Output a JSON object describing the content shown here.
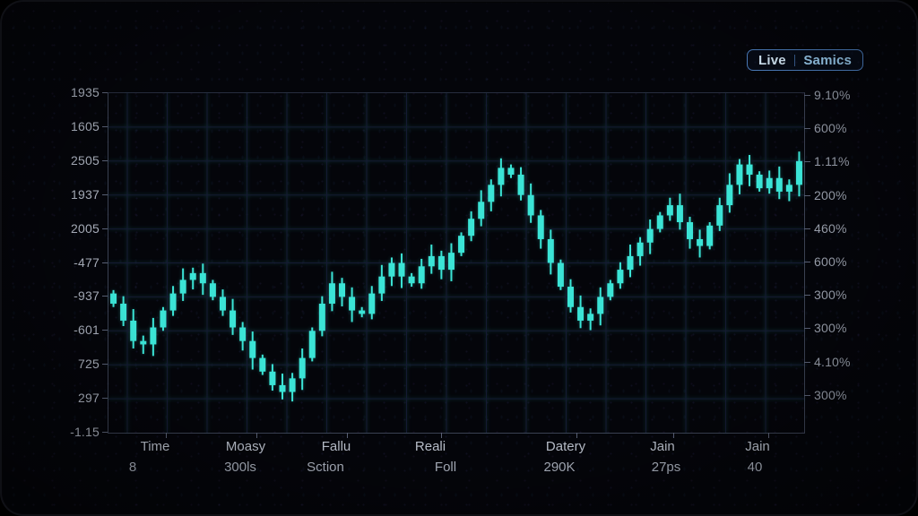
{
  "badge": {
    "live": "Live",
    "name": "Samics"
  },
  "chart_data": {
    "type": "candlestick",
    "title": "",
    "color": "#3be4d6",
    "grid": true,
    "legend_position": "top-right",
    "y_axis_left_labels": [
      "1935",
      "1605",
      "2505",
      "1937",
      "2005",
      "-477",
      "-937",
      "-601",
      "725",
      "297",
      "-1.15"
    ],
    "y_axis_right_labels": [
      "9.10%",
      "600%",
      "1.11%",
      "200%",
      "460%",
      "600%",
      "300%",
      "300%",
      "4.10%",
      "300%"
    ],
    "x_groups": [
      {
        "label": "Time",
        "value": "8"
      },
      {
        "label": "Moasy",
        "value": "300ls"
      },
      {
        "label": "Fallu",
        "value": "Sction"
      },
      {
        "label": "Reali",
        "value": "Foll"
      },
      {
        "label": "Datery",
        "value": "290K"
      },
      {
        "label": "Jain",
        "value": "27ps"
      },
      {
        "label": "Jain",
        "value": "40"
      }
    ],
    "value_range": [
      0,
      100
    ],
    "first_open": 41,
    "closes": [
      38,
      33,
      27,
      26,
      31,
      36,
      41,
      45,
      47,
      44,
      40,
      36,
      31,
      27,
      22,
      18,
      14,
      12,
      16,
      22,
      30,
      38,
      44,
      40,
      36,
      35,
      41,
      46,
      50,
      46,
      44,
      49,
      52,
      48,
      53,
      58,
      63,
      68,
      73,
      78,
      76,
      70,
      64,
      57,
      50,
      43,
      37,
      33,
      35,
      40,
      44,
      48,
      52,
      56,
      60,
      64,
      67,
      62,
      57,
      55,
      61,
      67,
      73,
      79,
      76,
      72,
      75,
      71,
      73,
      80
    ]
  },
  "colors": {
    "candle": "#3be4d6",
    "grid": "#151a33",
    "axis_border": "#3a4152",
    "label_text": "#a9afbb",
    "badge_border": "#4d7fc0",
    "background": "#04050a"
  }
}
